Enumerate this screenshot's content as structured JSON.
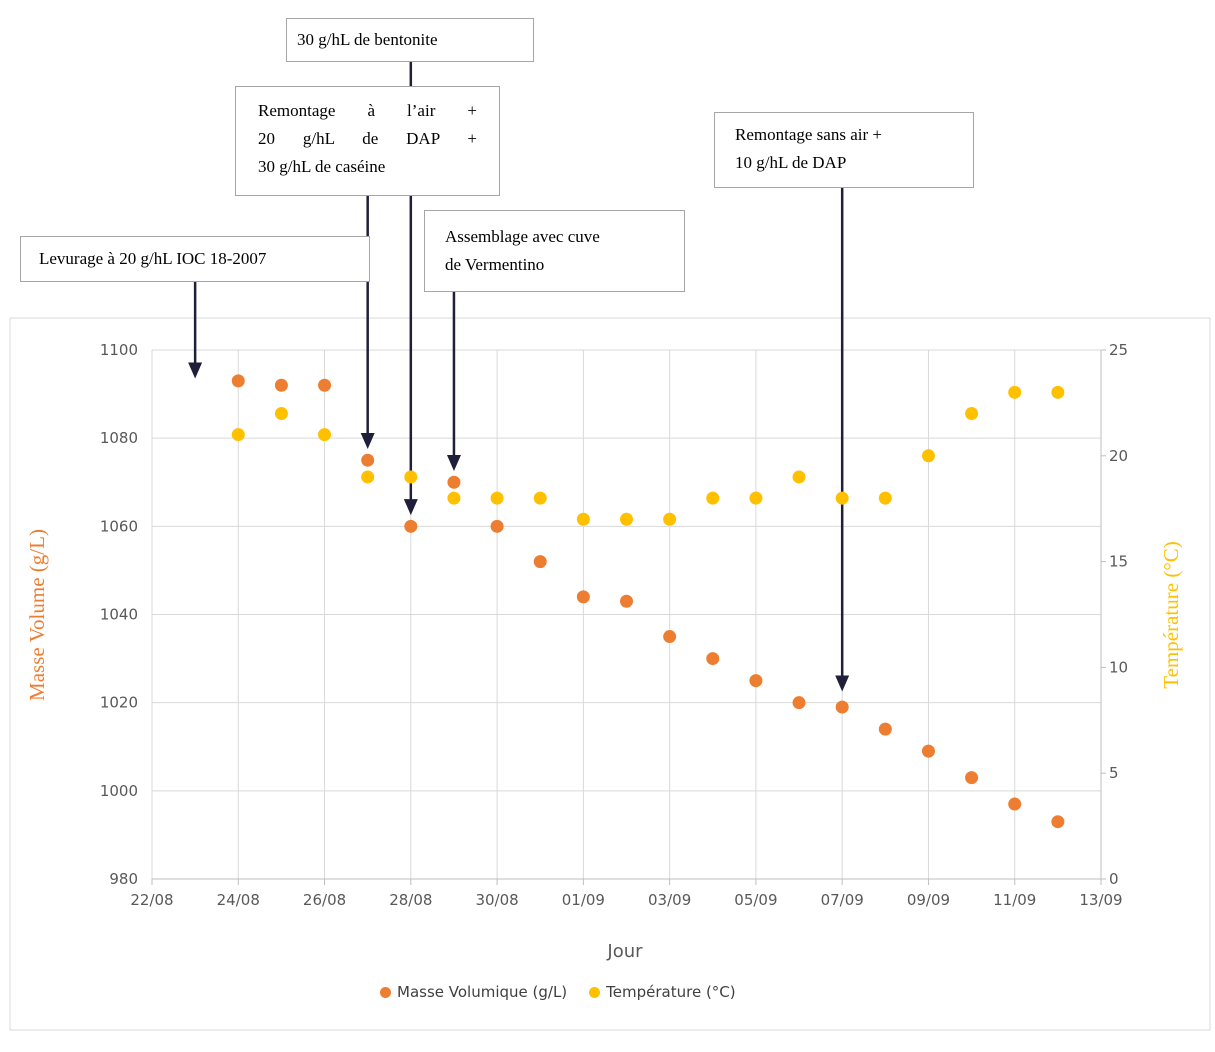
{
  "colors": {
    "density": "#ED7D31",
    "temperature": "#FFC000",
    "arrow": "#1f1f3a",
    "grid": "#d9d9d9",
    "axis_text": "#595959"
  },
  "annotations": {
    "bentonite": [
      "30 g/hL de bentonite"
    ],
    "remontage_air": [
      "Remontage à l’air +",
      "20 g/hL de DAP +",
      "30 g/hL de caséine"
    ],
    "remontage_sans_air": [
      "Remontage sans air +",
      "10 g/hL de DAP"
    ],
    "levurage": [
      "Levurage à 20 g/hL IOC 18-2007"
    ],
    "assemblage": [
      "Assemblage avec cuve",
      "de Vermentino"
    ]
  },
  "chart_data": {
    "type": "scatter",
    "xlabel": "Jour",
    "ylabel": "Masse Volume (g/L)",
    "y2label": "Température (°C)",
    "x_ticks": [
      "22/08",
      "24/08",
      "26/08",
      "28/08",
      "30/08",
      "01/09",
      "03/09",
      "05/09",
      "07/09",
      "09/09",
      "11/09",
      "13/09"
    ],
    "x_range": [
      "22/08",
      "13/09"
    ],
    "ylim": [
      980,
      1100
    ],
    "y_ticks": [
      980,
      1000,
      1020,
      1040,
      1060,
      1080,
      1100
    ],
    "y2lim": [
      0,
      25
    ],
    "y2_ticks": [
      0,
      5,
      10,
      15,
      20,
      25
    ],
    "grid": true,
    "legend_position": "bottom",
    "series": [
      {
        "name": "Masse Volumique (g/L)",
        "axis": "left",
        "x": [
          "24/08",
          "25/08",
          "26/08",
          "27/08",
          "28/08",
          "29/08",
          "30/08",
          "31/08",
          "01/09",
          "02/09",
          "03/09",
          "04/09",
          "05/09",
          "06/09",
          "07/09",
          "08/09",
          "09/09",
          "10/09",
          "11/09",
          "12/09"
        ],
        "values": [
          1093,
          1092,
          1092,
          1075,
          1060,
          1070,
          1060,
          1052,
          1044,
          1043,
          1035,
          1030,
          1025,
          1020,
          1019,
          1014,
          1009,
          1003,
          997,
          993
        ]
      },
      {
        "name": "Température (°C)",
        "axis": "right",
        "x": [
          "24/08",
          "25/08",
          "26/08",
          "27/08",
          "28/08",
          "29/08",
          "30/08",
          "31/08",
          "01/09",
          "02/09",
          "03/09",
          "04/09",
          "05/09",
          "06/09",
          "07/09",
          "08/09",
          "09/09",
          "10/09",
          "11/09",
          "12/09"
        ],
        "values": [
          21,
          22,
          21,
          19,
          19,
          18,
          18,
          18,
          17,
          17,
          17,
          18,
          18,
          19,
          18,
          18,
          20,
          22,
          23,
          23
        ]
      }
    ],
    "event_markers": [
      {
        "annotation": "levurage",
        "x": "23/08",
        "y": 1094
      },
      {
        "annotation": "remontage_air",
        "x": "27/08",
        "y": 1078
      },
      {
        "annotation": "bentonite",
        "x": "28/08",
        "y": 1063
      },
      {
        "annotation": "assemblage",
        "x": "29/08",
        "y": 1073
      },
      {
        "annotation": "remontage_sans_air",
        "x": "07/09",
        "y": 1023
      }
    ]
  }
}
